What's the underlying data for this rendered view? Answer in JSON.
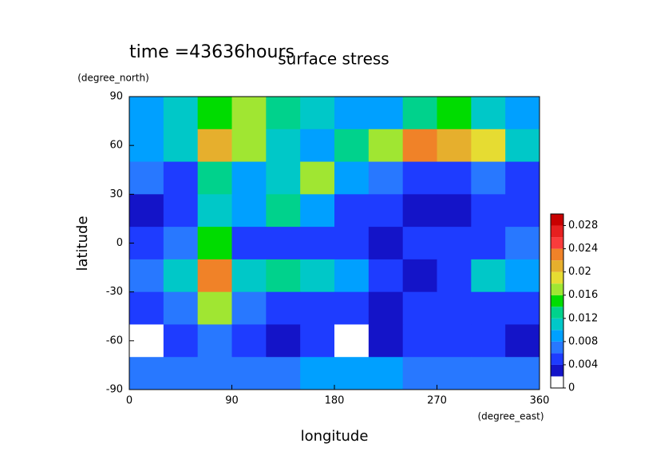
{
  "chart_data": {
    "type": "heatmap",
    "title": "surface stress",
    "time_label": "time =43636hours",
    "x_label": "longitude",
    "x_unit": "(degree_east)",
    "y_label": "latitude",
    "y_unit": "(degree_north)",
    "xlim": [
      0,
      360
    ],
    "xticks": [
      0,
      90,
      180,
      270,
      360
    ],
    "ylim": [
      -90,
      90
    ],
    "yticks": [
      -90,
      -60,
      -30,
      0,
      30,
      60,
      90
    ],
    "x": [
      15,
      45,
      75,
      105,
      135,
      165,
      195,
      225,
      255,
      285,
      315,
      345
    ],
    "y": [
      80,
      60,
      40,
      20,
      0,
      -20,
      -40,
      -60,
      -80
    ],
    "z": [
      [
        0.008,
        0.01,
        0.014,
        0.016,
        0.012,
        0.01,
        0.008,
        0.008,
        0.012,
        0.014,
        0.01,
        0.008
      ],
      [
        0.008,
        0.01,
        0.02,
        0.016,
        0.01,
        0.008,
        0.012,
        0.016,
        0.022,
        0.02,
        0.018,
        0.01
      ],
      [
        0.006,
        0.004,
        0.012,
        0.008,
        0.01,
        0.016,
        0.008,
        0.006,
        0.004,
        0.004,
        0.006,
        0.004
      ],
      [
        0.002,
        0.004,
        0.01,
        0.008,
        0.012,
        0.008,
        0.004,
        0.004,
        0.002,
        0.002,
        0.004,
        0.004
      ],
      [
        0.004,
        0.006,
        0.014,
        0.004,
        0.004,
        0.004,
        0.004,
        0.002,
        0.004,
        0.004,
        0.004,
        0.006
      ],
      [
        0.006,
        0.01,
        0.022,
        0.01,
        0.012,
        0.01,
        0.008,
        0.004,
        0.002,
        0.004,
        0.01,
        0.008
      ],
      [
        0.004,
        0.006,
        0.016,
        0.006,
        0.004,
        0.004,
        0.004,
        0.002,
        0.004,
        0.004,
        0.004,
        0.004
      ],
      [
        0,
        0.004,
        0.006,
        0.004,
        0.002,
        0.004,
        0,
        0.002,
        0.004,
        0.004,
        0.004,
        0.002
      ],
      [
        0.006,
        0.006,
        0.006,
        0.006,
        0.006,
        0.008,
        0.008,
        0.008,
        0.006,
        0.006,
        0.006,
        0.006
      ]
    ],
    "colorbar": {
      "lim": [
        0,
        0.03
      ],
      "levels": [
        0,
        0.002,
        0.004,
        0.006,
        0.008,
        0.01,
        0.012,
        0.014,
        0.016,
        0.018,
        0.02,
        0.022,
        0.024,
        0.026,
        0.028,
        0.03
      ],
      "colors": [
        "#ffffff",
        "#1414c8",
        "#1e3cff",
        "#2878ff",
        "#00a0ff",
        "#00c8c8",
        "#00d28c",
        "#00dc00",
        "#a0e632",
        "#e6dc32",
        "#e6af2d",
        "#f08228",
        "#fa3c3c",
        "#e62020",
        "#c80000"
      ],
      "ticks": [
        0,
        0.004,
        0.008,
        0.012,
        0.016,
        0.02,
        0.024,
        0.028
      ]
    }
  }
}
